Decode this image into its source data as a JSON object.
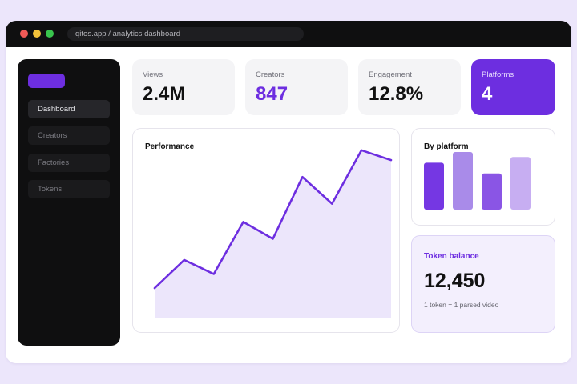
{
  "browser": {
    "url": "qitos.app / analytics dashboard"
  },
  "sidebar": {
    "items": [
      {
        "label": "Dashboard",
        "active": true
      },
      {
        "label": "Creators",
        "active": false
      },
      {
        "label": "Factories",
        "active": false
      },
      {
        "label": "Tokens",
        "active": false
      }
    ]
  },
  "stats": [
    {
      "label": "Views",
      "value": "2.4M"
    },
    {
      "label": "Creators",
      "value": "847"
    },
    {
      "label": "Engagement",
      "value": "12.8%"
    },
    {
      "label": "Platforms",
      "value": "4"
    }
  ],
  "performance": {
    "title": "Performance"
  },
  "platform": {
    "title": "By platform"
  },
  "token": {
    "title": "Token balance",
    "value": "12,450",
    "note": "1 token = 1 parsed video"
  },
  "colors": {
    "accent": "#6d2ee0",
    "sidebar_bg": "#0f0f10",
    "page_bg": "#ece6fb"
  },
  "chart_data": [
    {
      "type": "area",
      "title": "Performance",
      "xlabel": "",
      "ylabel": "",
      "x": [
        1,
        2,
        3,
        4,
        5,
        6,
        7,
        8,
        9
      ],
      "series": [
        {
          "values": [
            21,
            41,
            31,
            68,
            56,
            100,
            81,
            119,
            112
          ]
        }
      ],
      "ylim": [
        0,
        120
      ],
      "grid": false,
      "fill_color": "#ece6fb",
      "line_color": "#6d2ee0",
      "comment_free": true
    },
    {
      "type": "bar",
      "title": "By platform",
      "categories": [
        "",
        "",
        "",
        ""
      ],
      "values": [
        57,
        70,
        44,
        64
      ],
      "ylim": [
        0,
        70
      ],
      "colors": [
        "#7537e3",
        "#a98be9",
        "#8a55e5",
        "#c7aef2"
      ]
    }
  ]
}
